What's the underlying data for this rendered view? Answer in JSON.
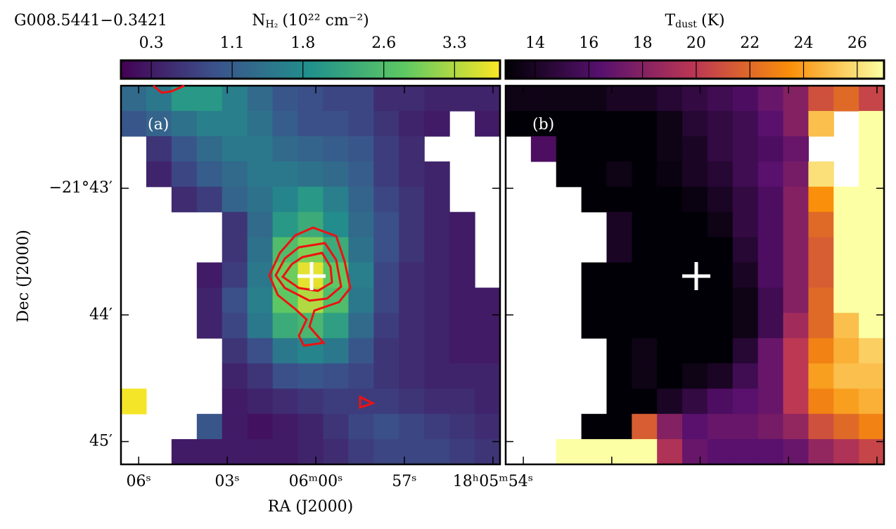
{
  "chart_data": [
    {
      "type": "heatmap",
      "title": "G008.5441−0.3421",
      "panel_label": "(a)",
      "colorbar_label": {
        "symbol": "N",
        "subscript": "H₂",
        "unit": "(10²² cm⁻²)"
      },
      "colormap": "viridis",
      "vlim": [
        0,
        3.75
      ],
      "vticks": [
        0.3,
        1.1,
        1.8,
        2.6,
        3.3
      ],
      "xlabel": "RA (J2000)",
      "ylabel": "Dec (J2000)",
      "tick_labels": true,
      "xlim": [
        6.6,
        -6.24
      ],
      "ylim": [
        42.19,
        45.18
      ],
      "xticks": [
        {
          "value": 6,
          "label": "06ˢ"
        },
        {
          "value": 3,
          "label": "03ˢ"
        },
        {
          "value": 0,
          "label": "06ᵐ00ˢ"
        },
        {
          "value": -3,
          "label": "57ˢ"
        },
        {
          "value": -6,
          "label": "18ʰ05ᵐ54ˢ"
        }
      ],
      "yticks": [
        {
          "value": 43,
          "label": "−21°43′"
        },
        {
          "value": 44,
          "label": "44′"
        },
        {
          "value": 45,
          "label": "45′"
        }
      ],
      "values": [
        [
          1.3,
          1.5,
          2.0,
          2.0,
          1.6,
          1.3,
          1.0,
          0.9,
          0.8,
          0.8,
          0.5,
          0.5,
          0.4,
          0.4,
          0.4
        ],
        [
          1.0,
          1.2,
          1.4,
          1.6,
          1.6,
          1.4,
          1.1,
          0.9,
          0.9,
          0.8,
          0.6,
          0.4,
          0.3,
          null,
          0.3
        ],
        [
          null,
          0.6,
          1.0,
          1.3,
          1.5,
          1.5,
          1.3,
          1.2,
          1.1,
          1.0,
          0.7,
          0.5,
          null,
          null,
          null
        ],
        [
          null,
          0.4,
          0.8,
          1.1,
          1.3,
          1.5,
          1.5,
          1.4,
          1.3,
          1.1,
          0.7,
          0.5,
          0.4,
          null,
          null
        ],
        [
          null,
          null,
          0.5,
          0.7,
          1.2,
          1.4,
          1.7,
          2.0,
          1.6,
          1.2,
          0.8,
          0.6,
          0.4,
          null,
          null
        ],
        [
          null,
          null,
          null,
          null,
          0.6,
          1.3,
          2.0,
          2.3,
          1.8,
          1.3,
          0.9,
          0.6,
          0.4,
          0.3,
          null
        ],
        [
          null,
          null,
          null,
          null,
          0.6,
          1.4,
          2.6,
          3.0,
          2.3,
          1.4,
          0.9,
          0.6,
          0.4,
          0.3,
          null
        ],
        [
          null,
          null,
          null,
          0.3,
          0.7,
          1.5,
          2.9,
          3.6,
          2.8,
          1.6,
          0.8,
          0.5,
          0.4,
          0.3,
          null
        ],
        [
          null,
          null,
          null,
          0.4,
          0.9,
          1.6,
          2.8,
          3.3,
          2.6,
          1.5,
          0.8,
          0.5,
          0.4,
          0.3,
          0.3
        ],
        [
          null,
          null,
          null,
          0.4,
          0.8,
          1.5,
          2.3,
          2.5,
          2.1,
          1.3,
          0.7,
          0.5,
          0.4,
          0.3,
          0.3
        ],
        [
          null,
          null,
          null,
          null,
          0.6,
          0.9,
          1.5,
          1.7,
          1.5,
          1.0,
          0.6,
          0.5,
          0.4,
          0.3,
          0.3
        ],
        [
          null,
          null,
          null,
          null,
          0.4,
          0.6,
          0.9,
          1.0,
          0.9,
          0.8,
          0.6,
          0.5,
          0.4,
          0.4,
          0.4
        ],
        [
          3.7,
          null,
          null,
          null,
          0.3,
          0.4,
          0.5,
          0.6,
          0.7,
          0.7,
          0.7,
          0.6,
          0.5,
          0.5,
          0.4
        ],
        [
          null,
          null,
          null,
          1.0,
          0.3,
          0.2,
          0.3,
          0.4,
          0.6,
          0.8,
          0.9,
          0.8,
          0.7,
          0.6,
          0.5
        ],
        [
          null,
          null,
          0.3,
          0.3,
          0.3,
          0.3,
          0.3,
          0.4,
          0.5,
          0.7,
          0.8,
          0.8,
          0.8,
          0.7,
          0.6
        ]
      ]
    },
    {
      "type": "heatmap",
      "panel_label": "(b)",
      "colorbar_label": {
        "symbol": "T",
        "subscript": "dust",
        "unit": "(K)"
      },
      "colormap": "inferno",
      "vlim": [
        12.9,
        27
      ],
      "vticks": [
        14,
        16,
        18,
        20,
        22,
        24,
        26
      ],
      "tick_labels": false,
      "xlim": [
        6.6,
        -6.24
      ],
      "ylim": [
        42.19,
        45.18
      ],
      "xticks": [
        6,
        3,
        0,
        -3,
        -6
      ],
      "yticks": [
        43,
        44,
        45
      ],
      "values": [
        [
          13.5,
          13.5,
          13.5,
          13.5,
          14,
          14,
          14.5,
          15,
          15.5,
          16,
          17,
          18,
          21,
          22,
          20.5
        ],
        [
          13,
          13,
          13,
          13,
          13,
          13,
          13.5,
          14.5,
          15,
          15.5,
          16.5,
          18,
          25,
          null,
          27
        ],
        [
          null,
          16,
          13,
          13,
          13,
          13,
          13.5,
          14,
          15,
          15.5,
          16,
          17,
          null,
          null,
          27
        ],
        [
          null,
          null,
          13,
          13,
          13.5,
          13,
          13.3,
          14,
          14.5,
          15.5,
          16.5,
          17.5,
          26,
          null,
          27
        ],
        [
          null,
          null,
          null,
          13,
          13,
          13,
          13,
          13.3,
          14,
          15,
          16,
          18,
          23.5,
          27,
          27
        ],
        [
          null,
          null,
          null,
          null,
          14,
          13,
          13,
          13,
          13.5,
          15,
          16,
          18,
          22,
          27,
          27
        ],
        [
          null,
          null,
          null,
          null,
          14,
          13,
          13,
          13,
          13,
          14.5,
          16,
          18,
          21.5,
          27,
          27
        ],
        [
          null,
          null,
          null,
          13,
          13,
          13,
          13,
          13,
          13,
          14,
          16,
          18,
          21.5,
          27,
          27
        ],
        [
          null,
          null,
          null,
          13,
          13,
          13,
          13,
          13,
          13,
          13.5,
          15.5,
          18,
          22,
          27,
          27
        ],
        [
          null,
          null,
          null,
          13,
          13,
          13,
          13,
          13,
          13,
          13.5,
          15.5,
          19,
          22,
          25,
          27
        ],
        [
          null,
          null,
          null,
          null,
          13,
          13.5,
          13,
          13,
          13,
          14.5,
          17,
          20,
          23,
          24.5,
          25.5
        ],
        [
          null,
          null,
          null,
          null,
          13,
          13.5,
          13,
          13.5,
          14,
          15.5,
          17,
          20,
          24,
          25,
          25
        ],
        [
          null,
          null,
          null,
          null,
          13,
          13,
          14,
          15,
          16,
          16.5,
          17,
          20,
          23,
          24,
          24.5
        ],
        [
          null,
          null,
          null,
          13,
          13,
          21.5,
          18,
          16.5,
          17,
          17,
          17.5,
          18.5,
          21,
          22,
          23
        ],
        [
          null,
          null,
          27,
          27,
          27,
          27,
          19.5,
          17,
          16.5,
          16.5,
          16.5,
          17,
          18.5,
          19.5,
          20.5
        ]
      ]
    }
  ]
}
